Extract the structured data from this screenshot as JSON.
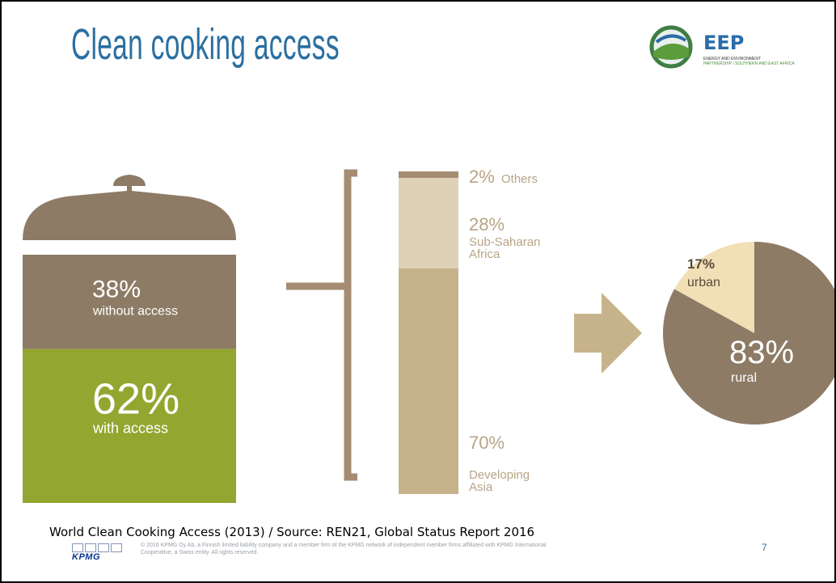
{
  "slide": {
    "title": "Clean cooking access",
    "logo": {
      "name": "EEP",
      "line1": "ENERGY AND ENVIRONMENT",
      "line2": "PARTNERSHIP / SOUTHERN AND EAST AFRICA"
    },
    "caption": "World Clean Cooking Access (2013) / Source: REN21, Global Status Report 2016",
    "footer_logo": "KPMG",
    "legal_line1": "© 2016 KPMG Oy Ab, a Finnish limited liability company and a member firm of the KPMG network of independent member firms affiliated with KPMG International",
    "legal_line2": "Cooperative, a Swiss entity. All rights reserved.",
    "page_number": "7"
  },
  "colors": {
    "brown": "#8d7b66",
    "green": "#93a630",
    "tan": "#c7b38b",
    "light_tan": "#ded1b6",
    "cream": "#f1dfb6",
    "accent": "#2b6fa0"
  },
  "chart_data": [
    {
      "type": "bar",
      "stacked": true,
      "description_visible": "pot",
      "segments": [
        {
          "pct": "38%",
          "label": "without access",
          "value": 38,
          "color": "#8d7b66"
        },
        {
          "pct": "62%",
          "label": "with access",
          "value": 62,
          "color": "#93a630"
        }
      ]
    },
    {
      "type": "bar",
      "stacked": true,
      "segments": [
        {
          "pct": "2%",
          "label": "Others",
          "value": 2,
          "color": "#a58c72"
        },
        {
          "pct": "28%",
          "label": "Sub-Saharan Africa",
          "value": 28,
          "color": "#ded1b6"
        },
        {
          "pct": "70%",
          "label": "Developing Asia",
          "value": 70,
          "color": "#c7b38b"
        }
      ]
    },
    {
      "type": "pie",
      "slices": [
        {
          "pct": "17%",
          "label": "urban",
          "value": 17,
          "color": "#f1dfb6"
        },
        {
          "pct": "83%",
          "label": "rural",
          "value": 83,
          "color": "#8d7b66"
        }
      ]
    }
  ]
}
